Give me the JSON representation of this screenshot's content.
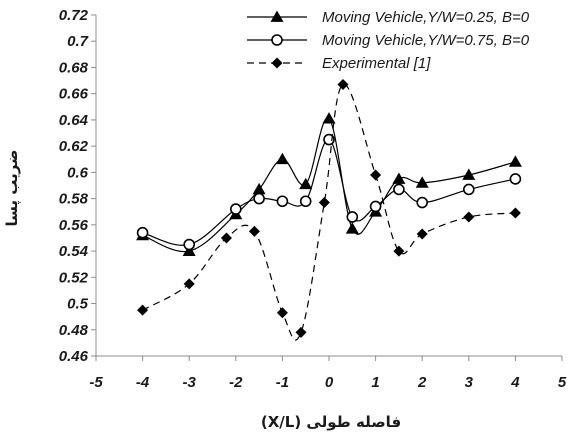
{
  "chart_data": {
    "type": "line",
    "xlabel": "فاصله طولی (X/L)",
    "ylabel": "ضریب پسا",
    "xlim": [
      -5,
      5
    ],
    "ylim": [
      0.46,
      0.72
    ],
    "xticks": [
      "-5",
      "-4",
      "-3",
      "-2",
      "-1",
      "0",
      "1",
      "2",
      "3",
      "4",
      "5"
    ],
    "yticks": [
      "0.46",
      "0.48",
      "0.5",
      "0.52",
      "0.54",
      "0.56",
      "0.58",
      "0.6",
      "0.62",
      "0.64",
      "0.66",
      "0.68",
      "0.7",
      "0.72"
    ],
    "grid": false,
    "legend_position": "top-right",
    "series": [
      {
        "name": "Moving Vehicle,Y/W=0.25, B=0",
        "marker": "triangle",
        "line": "solid",
        "color": "#000000",
        "x": [
          -4,
          -3,
          -2,
          -1.5,
          -1,
          -0.5,
          0,
          0.5,
          1,
          1.5,
          2,
          3,
          4
        ],
        "y": [
          0.552,
          0.54,
          0.568,
          0.587,
          0.61,
          0.591,
          0.641,
          0.557,
          0.57,
          0.595,
          0.592,
          0.598,
          0.608
        ]
      },
      {
        "name": "Moving Vehicle,Y/W=0.75, B=0",
        "marker": "circle-open",
        "line": "solid",
        "color": "#000000",
        "x": [
          -4,
          -3,
          -2,
          -1.5,
          -1,
          -0.5,
          0,
          0.5,
          1,
          1.5,
          2,
          3,
          4
        ],
        "y": [
          0.554,
          0.545,
          0.572,
          0.58,
          0.578,
          0.578,
          0.625,
          0.566,
          0.574,
          0.587,
          0.577,
          0.587,
          0.595
        ]
      },
      {
        "name": "Experimental [1]",
        "marker": "diamond",
        "line": "dashed",
        "color": "#000000",
        "x": [
          -4,
          -3,
          -2.2,
          -1.6,
          -1,
          -0.6,
          -0.1,
          0.3,
          1,
          1.5,
          2,
          3,
          4
        ],
        "y": [
          0.495,
          0.515,
          0.55,
          0.555,
          0.493,
          0.478,
          0.577,
          0.667,
          0.598,
          0.54,
          0.553,
          0.566,
          0.569
        ]
      }
    ]
  }
}
